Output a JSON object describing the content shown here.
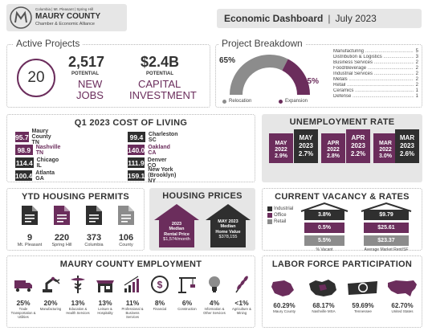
{
  "header": {
    "logo_line1": "Columbia | Mt. Pleasant | Spring Hill",
    "logo_line2": "MAURY COUNTY",
    "logo_line3": "Chamber & Economic Alliance",
    "title": "Economic Dashboard",
    "separator": "|",
    "date": "July 2023"
  },
  "active_projects": {
    "title": "Active Projects",
    "count": "20",
    "jobs_value": "2,517",
    "jobs_potential": "POTENTIAL",
    "jobs_label_1": "NEW",
    "jobs_label_2": "JOBS",
    "capital_value": "$2.4B",
    "capital_potential": "POTENTIAL",
    "capital_label_1": "CAPITAL",
    "capital_label_2": "INVESTMENT"
  },
  "project_breakdown": {
    "title": "Project Breakdown",
    "relocation_pct": "65%",
    "expansion_pct": "35%",
    "relocation_label": "Relocation",
    "expansion_label": "Expansion",
    "relocation_color": "#8c8c8c",
    "expansion_color": "#6b2d5c",
    "expansion_fraction": 0.35,
    "items": [
      {
        "name": "Manufacturing",
        "value": "5"
      },
      {
        "name": "Distribution & Logistics",
        "value": "3"
      },
      {
        "name": "Business Services",
        "value": "2"
      },
      {
        "name": "Food/Beverage",
        "value": "2"
      },
      {
        "name": "Industrial Services",
        "value": "2"
      },
      {
        "name": "Metals",
        "value": "2"
      },
      {
        "name": "Retail",
        "value": "2"
      },
      {
        "name": "Ceramics",
        "value": "1"
      },
      {
        "name": "Defense",
        "value": "1"
      }
    ]
  },
  "cost_of_living": {
    "title": "Q1 2023 COST OF LIVING",
    "left": [
      {
        "value": "95.7",
        "city": "Maury County TN",
        "style": "pur",
        "hl": false
      },
      {
        "value": "98.9",
        "city": "Nashville TN",
        "style": "pur",
        "hl": true
      },
      {
        "value": "114.4",
        "city": "Chicago IL",
        "style": "dark",
        "hl": false
      },
      {
        "value": "100.4",
        "city": "Atlanta GA",
        "style": "dark",
        "hl": false
      }
    ],
    "right": [
      {
        "value": "99.4",
        "city": "Charleston SC",
        "style": "dark",
        "hl": false
      },
      {
        "value": "140.0",
        "city": "Oakland CA",
        "style": "pur",
        "hl": true
      },
      {
        "value": "111.9",
        "city": "Denver CO",
        "style": "dark",
        "hl": false
      },
      {
        "value": "159.1",
        "city": "New York (Brooklyn) NY",
        "style": "dark",
        "hl": false
      }
    ]
  },
  "unemployment": {
    "title": "UNEMPLOYMENT RATE",
    "groups": [
      {
        "a": {
          "month": "MAY",
          "year": "2022",
          "rate": "2.9%"
        },
        "b": {
          "month": "MAY",
          "year": "2023",
          "rate": "2.7%"
        }
      },
      {
        "a": {
          "month": "APR",
          "year": "2022",
          "rate": "2.8%"
        },
        "b": {
          "month": "APR",
          "year": "2023",
          "rate": "2.2%"
        }
      },
      {
        "a": {
          "month": "MAR",
          "year": "2022",
          "rate": "3.0%"
        },
        "b": {
          "month": "MAR",
          "year": "2023",
          "rate": "2.6%"
        }
      }
    ]
  },
  "housing_permits": {
    "title": "YTD HOUSING PERMITS",
    "items": [
      {
        "value": "9",
        "place": "Mt. Pleasant",
        "color": "#2f2f2f"
      },
      {
        "value": "220",
        "place": "Spring Hill",
        "color": "#6b2d5c"
      },
      {
        "value": "373",
        "place": "Columbia",
        "color": "#2f2f2f"
      },
      {
        "value": "106",
        "place": "County",
        "color": "#8c8c8c"
      }
    ]
  },
  "housing_prices": {
    "title": "HOUSING PRICES",
    "rent_year": "2023",
    "rent_label_1": "Median",
    "rent_label_2": "Rental Price",
    "rent_value": "$1,574/month",
    "home_date": "MAY 2023",
    "home_label_1": "Median",
    "home_label_2": "Home Value",
    "home_value": "$378,155"
  },
  "vacancy": {
    "title": "CURRENT VACANCY & RATES",
    "legend": [
      {
        "label": "Industrial",
        "color": "#2f2f2f"
      },
      {
        "label": "Office",
        "color": "#6b2d5c"
      },
      {
        "label": "Retail",
        "color": "#8c8c8c"
      }
    ],
    "vacancy_values": [
      "3.8%",
      "0.5%",
      "5.5%"
    ],
    "rent_values": [
      "$9.79",
      "$25.61",
      "$23.37"
    ],
    "vacancy_label": "% Vacant",
    "rent_label": "Average Market Rent/SF"
  },
  "employment": {
    "title": "MAURY COUNTY EMPLOYMENT",
    "items": [
      {
        "pct": "25%",
        "label": "Trade Transportation & Utilities",
        "icon": "truck-icon"
      },
      {
        "pct": "20%",
        "label": "Manufacturing",
        "icon": "robot-arm-icon"
      },
      {
        "pct": "13%",
        "label": "Education & Health Services",
        "icon": "caduceus-icon"
      },
      {
        "pct": "13%",
        "label": "Leisure & Hospitality",
        "icon": "storefront-icon"
      },
      {
        "pct": "11%",
        "label": "Professional & Business Services",
        "icon": "growth-chart-icon"
      },
      {
        "pct": "8%",
        "label": "Financial",
        "icon": "dollar-icon"
      },
      {
        "pct": "6%",
        "label": "Construction",
        "icon": "crane-icon"
      },
      {
        "pct": "4%",
        "label": "Information & Other Services",
        "icon": "lightbulb-icon"
      },
      {
        "pct": "<1%",
        "label": "Agriculture & Mining",
        "icon": "wheat-icon"
      }
    ]
  },
  "labor": {
    "title": "LABOR FORCE PARTICIPATION",
    "items": [
      {
        "pct": "60.29%",
        "label": "Maury County",
        "icon": "maury-county-map-icon"
      },
      {
        "pct": "68.17%",
        "label": "Nashville MSA",
        "icon": "nashville-msa-map-icon"
      },
      {
        "pct": "59.69%",
        "label": "Tennessee",
        "icon": "tennessee-map-icon"
      },
      {
        "pct": "62.70%",
        "label": "United States",
        "icon": "usa-map-icon"
      }
    ]
  }
}
